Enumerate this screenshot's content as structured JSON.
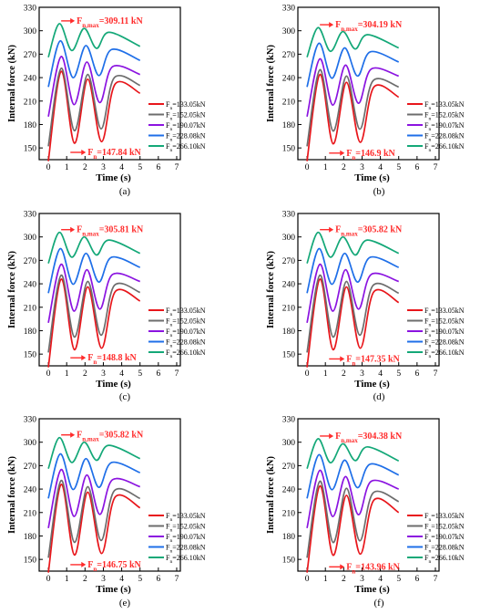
{
  "figure": {
    "legend_labels": [
      "F_n=133.05kN",
      "F_n=152.05kN",
      "F_n=190.07kN",
      "F_n=228.08kN",
      "F_n=266.10kN"
    ],
    "series_colors": [
      "#e8161b",
      "#6d6d6d",
      "#8b14e0",
      "#1f6fe8",
      "#14a878"
    ],
    "annotation_color": "#ff2b2b"
  },
  "chart_data": [
    {
      "type": "line",
      "panel_label": "(a)",
      "xlabel": "Time (s)",
      "ylabel": "Internal force (kN)",
      "xlim": [
        -0.5,
        7.2
      ],
      "ylim": [
        135,
        330
      ],
      "xticks": [
        0,
        1,
        2,
        3,
        4,
        5,
        6,
        7
      ],
      "yticks": [
        150,
        180,
        210,
        240,
        270,
        300,
        330
      ],
      "series": [
        {
          "name": "F_n=133.05kN",
          "base": 133.05,
          "peaks": [
            [
              0.7,
              248
            ],
            [
              2.15,
              238
            ],
            [
              3.65,
              232
            ]
          ],
          "end": [
            5,
            220
          ]
        },
        {
          "name": "F_n=152.05kN",
          "base": 152.05,
          "peaks": [
            [
              0.7,
              252
            ],
            [
              2.15,
              244
            ],
            [
              3.6,
              240
            ]
          ],
          "end": [
            5,
            230
          ]
        },
        {
          "name": "F_n=190.07kN",
          "base": 190.07,
          "peaks": [
            [
              0.7,
              267
            ],
            [
              2.1,
              260
            ],
            [
              3.5,
              254
            ]
          ],
          "end": [
            5,
            244
          ]
        },
        {
          "name": "F_n=228.08kN",
          "base": 228.08,
          "peaks": [
            [
              0.65,
              287
            ],
            [
              2.05,
              281
            ],
            [
              3.45,
              276
            ]
          ],
          "end": [
            5,
            262
          ]
        },
        {
          "name": "F_n=266.10kN",
          "base": 266.1,
          "peaks": [
            [
              0.6,
              309
            ],
            [
              1.95,
              303
            ],
            [
              3.3,
              298
            ]
          ],
          "end": [
            5,
            280
          ]
        }
      ],
      "annotation_max": {
        "main": "F",
        "sub": "n,max",
        "value": "=309.11 kN",
        "x": 0.6,
        "y": 309.11
      },
      "annotation_min": {
        "main": "F",
        "sub": "n",
        "value": "=147.84 kN",
        "x": 1.6,
        "y": 147.84
      }
    },
    {
      "type": "line",
      "panel_label": "(b)",
      "xlabel": "Time (s)",
      "ylabel": "Internal force (kN)",
      "xlim": [
        -0.5,
        7.2
      ],
      "ylim": [
        135,
        330
      ],
      "xticks": [
        0,
        1,
        2,
        3,
        4,
        5,
        6,
        7
      ],
      "yticks": [
        150,
        180,
        210,
        240,
        270,
        300,
        330
      ],
      "series": [
        {
          "name": "F_n=133.05kN",
          "base": 133.05,
          "peaks": [
            [
              0.7,
              244
            ],
            [
              2.15,
              234
            ],
            [
              3.65,
              228
            ]
          ],
          "end": [
            5,
            215
          ]
        },
        {
          "name": "F_n=152.05kN",
          "base": 152.05,
          "peaks": [
            [
              0.7,
              250
            ],
            [
              2.15,
              242
            ],
            [
              3.6,
              236
            ]
          ],
          "end": [
            5,
            228
          ]
        },
        {
          "name": "F_n=190.07kN",
          "base": 190.07,
          "peaks": [
            [
              0.7,
              264
            ],
            [
              2.1,
              256
            ],
            [
              3.5,
              251
            ]
          ],
          "end": [
            5,
            242
          ]
        },
        {
          "name": "F_n=228.08kN",
          "base": 228.08,
          "peaks": [
            [
              0.65,
              284
            ],
            [
              2.05,
              278
            ],
            [
              3.45,
              273
            ]
          ],
          "end": [
            5,
            260
          ]
        },
        {
          "name": "F_n=266.10kN",
          "base": 266.1,
          "peaks": [
            [
              0.6,
              304
            ],
            [
              1.95,
              299
            ],
            [
              3.3,
              295
            ]
          ],
          "end": [
            5,
            278
          ]
        }
      ],
      "annotation_max": {
        "main": "F",
        "sub": "n,max",
        "value": "=304.19 kN",
        "x": 0.6,
        "y": 304.19
      },
      "annotation_min": {
        "main": "F",
        "sub": "n",
        "value": "=146.9 kN",
        "x": 1.6,
        "y": 146.9
      }
    },
    {
      "type": "line",
      "panel_label": "(c)",
      "xlabel": "Time (s)",
      "ylabel": "Internal force (kN)",
      "xlim": [
        -0.5,
        7.2
      ],
      "ylim": [
        135,
        330
      ],
      "xticks": [
        0,
        1,
        2,
        3,
        4,
        5,
        6,
        7
      ],
      "yticks": [
        150,
        180,
        210,
        240,
        270,
        300,
        330
      ],
      "series": [
        {
          "name": "F_n=133.05kN",
          "base": 133.05,
          "peaks": [
            [
              0.7,
              246
            ],
            [
              2.15,
              236
            ],
            [
              3.65,
              230
            ]
          ],
          "end": [
            5,
            218
          ]
        },
        {
          "name": "F_n=152.05kN",
          "base": 152.05,
          "peaks": [
            [
              0.7,
              251
            ],
            [
              2.15,
              243
            ],
            [
              3.6,
              238
            ]
          ],
          "end": [
            5,
            229
          ]
        },
        {
          "name": "F_n=190.07kN",
          "base": 190.07,
          "peaks": [
            [
              0.7,
              265
            ],
            [
              2.1,
              258
            ],
            [
              3.5,
              252
            ]
          ],
          "end": [
            5,
            243
          ]
        },
        {
          "name": "F_n=228.08kN",
          "base": 228.08,
          "peaks": [
            [
              0.65,
              285
            ],
            [
              2.05,
              279
            ],
            [
              3.45,
              274
            ]
          ],
          "end": [
            5,
            261
          ]
        },
        {
          "name": "F_n=266.10kN",
          "base": 266.1,
          "peaks": [
            [
              0.6,
              305.81
            ],
            [
              1.95,
              300
            ],
            [
              3.3,
              296
            ]
          ],
          "end": [
            5,
            279
          ]
        }
      ],
      "annotation_max": {
        "main": "F",
        "sub": "n,max",
        "value": "=305.81 kN",
        "x": 0.6,
        "y": 305.81
      },
      "annotation_min": {
        "main": "F",
        "sub": "n",
        "value": "=148.8 kN",
        "x": 1.6,
        "y": 148.8
      }
    },
    {
      "type": "line",
      "panel_label": "(d)",
      "xlabel": "Time (s)",
      "ylabel": "Internal force (kN)",
      "xlim": [
        -0.5,
        7.2
      ],
      "ylim": [
        135,
        330
      ],
      "xticks": [
        0,
        1,
        2,
        3,
        4,
        5,
        6,
        7
      ],
      "yticks": [
        150,
        180,
        210,
        240,
        270,
        300,
        330
      ],
      "series": [
        {
          "name": "F_n=133.05kN",
          "base": 133.05,
          "peaks": [
            [
              0.7,
              246
            ],
            [
              2.15,
              236
            ],
            [
              3.65,
              230
            ]
          ],
          "end": [
            5,
            216
          ]
        },
        {
          "name": "F_n=152.05kN",
          "base": 152.05,
          "peaks": [
            [
              0.7,
              251
            ],
            [
              2.15,
              243
            ],
            [
              3.6,
              238
            ]
          ],
          "end": [
            5,
            228
          ]
        },
        {
          "name": "F_n=190.07kN",
          "base": 190.07,
          "peaks": [
            [
              0.7,
              265
            ],
            [
              2.1,
              258
            ],
            [
              3.5,
              252
            ]
          ],
          "end": [
            5,
            243
          ]
        },
        {
          "name": "F_n=228.08kN",
          "base": 228.08,
          "peaks": [
            [
              0.65,
              285
            ],
            [
              2.05,
              279
            ],
            [
              3.45,
              274
            ]
          ],
          "end": [
            5,
            261
          ]
        },
        {
          "name": "F_n=266.10kN",
          "base": 266.1,
          "peaks": [
            [
              0.6,
              305.82
            ],
            [
              1.95,
              300
            ],
            [
              3.3,
              296
            ]
          ],
          "end": [
            5,
            279
          ]
        }
      ],
      "annotation_max": {
        "main": "F",
        "sub": "n,max",
        "value": "=305.82 kN",
        "x": 0.6,
        "y": 305.82
      },
      "annotation_min": {
        "main": "F",
        "sub": "n",
        "value": "=147.35 kN",
        "x": 1.6,
        "y": 147.35
      }
    },
    {
      "type": "line",
      "panel_label": "(e)",
      "xlabel": "Time (s)",
      "ylabel": "Internal force (kN)",
      "xlim": [
        -0.5,
        7.2
      ],
      "ylim": [
        135,
        330
      ],
      "xticks": [
        0,
        1,
        2,
        3,
        4,
        5,
        6,
        7
      ],
      "yticks": [
        150,
        180,
        210,
        240,
        270,
        300,
        330
      ],
      "series": [
        {
          "name": "F_n=133.05kN",
          "base": 133.05,
          "peaks": [
            [
              0.7,
              246
            ],
            [
              2.15,
              236
            ],
            [
              3.65,
              230
            ]
          ],
          "end": [
            5,
            216
          ]
        },
        {
          "name": "F_n=152.05kN",
          "base": 152.05,
          "peaks": [
            [
              0.7,
              251
            ],
            [
              2.15,
              243
            ],
            [
              3.6,
              238
            ]
          ],
          "end": [
            5,
            228
          ]
        },
        {
          "name": "F_n=190.07kN",
          "base": 190.07,
          "peaks": [
            [
              0.7,
              265
            ],
            [
              2.1,
              258
            ],
            [
              3.5,
              252
            ]
          ],
          "end": [
            5,
            243
          ]
        },
        {
          "name": "F_n=228.08kN",
          "base": 228.08,
          "peaks": [
            [
              0.65,
              285
            ],
            [
              2.05,
              279
            ],
            [
              3.45,
              274
            ]
          ],
          "end": [
            5,
            261
          ]
        },
        {
          "name": "F_n=266.10kN",
          "base": 266.1,
          "peaks": [
            [
              0.6,
              305.82
            ],
            [
              1.95,
              300
            ],
            [
              3.3,
              296
            ]
          ],
          "end": [
            5,
            279
          ]
        }
      ],
      "annotation_max": {
        "main": "F",
        "sub": "n,max",
        "value": "=305.82 kN",
        "x": 0.6,
        "y": 305.82
      },
      "annotation_min": {
        "main": "F",
        "sub": "n",
        "value": "=146.75 kN",
        "x": 1.6,
        "y": 146.75
      }
    },
    {
      "type": "line",
      "panel_label": "(f)",
      "xlabel": "Time (s)",
      "ylabel": "Internal force (kN)",
      "xlim": [
        -0.5,
        7.2
      ],
      "ylim": [
        135,
        330
      ],
      "xticks": [
        0,
        1,
        2,
        3,
        4,
        5,
        6,
        7
      ],
      "yticks": [
        150,
        180,
        210,
        240,
        270,
        300,
        330
      ],
      "series": [
        {
          "name": "F_n=133.05kN",
          "base": 133.05,
          "peaks": [
            [
              0.7,
              244
            ],
            [
              2.15,
              232
            ],
            [
              3.65,
              226
            ]
          ],
          "end": [
            5,
            210
          ]
        },
        {
          "name": "F_n=152.05kN",
          "base": 152.05,
          "peaks": [
            [
              0.7,
              250
            ],
            [
              2.15,
              241
            ],
            [
              3.6,
              235
            ]
          ],
          "end": [
            5,
            224
          ]
        },
        {
          "name": "F_n=190.07kN",
          "base": 190.07,
          "peaks": [
            [
              0.7,
              264
            ],
            [
              2.1,
              256
            ],
            [
              3.5,
              250
            ]
          ],
          "end": [
            5,
            240
          ]
        },
        {
          "name": "F_n=228.08kN",
          "base": 228.08,
          "peaks": [
            [
              0.65,
              284
            ],
            [
              2.05,
              277
            ],
            [
              3.45,
              272
            ]
          ],
          "end": [
            5,
            258
          ]
        },
        {
          "name": "F_n=266.10kN",
          "base": 266.1,
          "peaks": [
            [
              0.6,
              304.38
            ],
            [
              1.95,
              298
            ],
            [
              3.3,
              294
            ]
          ],
          "end": [
            5,
            276
          ]
        }
      ],
      "annotation_max": {
        "main": "F",
        "sub": "n,max",
        "value": "=304.38 kN",
        "x": 0.6,
        "y": 304.38
      },
      "annotation_min": {
        "main": "F",
        "sub": "n",
        "value": "=143.96 kN",
        "x": 1.6,
        "y": 143.96
      }
    }
  ]
}
